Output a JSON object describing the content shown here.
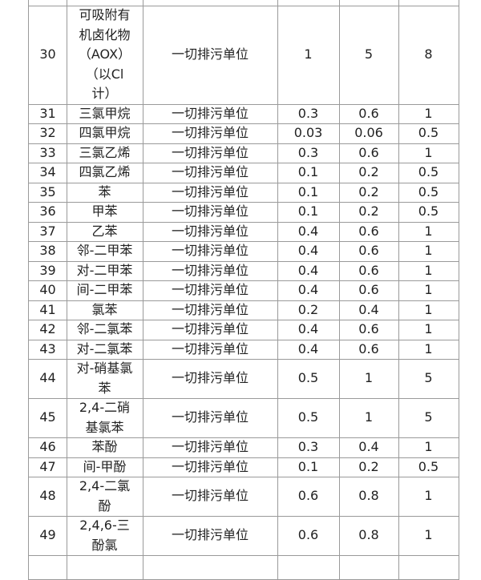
{
  "table": {
    "rows": [
      [
        "30",
        [
          "可吸附有",
          "机卤化物",
          "（AOX）",
          "（以Cl",
          "计）"
        ],
        "一切排污单位",
        "1",
        "5",
        "8"
      ],
      [
        "31",
        [
          "三氯甲烷"
        ],
        "一切排污单位",
        "0.3",
        "0.6",
        "1"
      ],
      [
        "32",
        [
          "四氯甲烷"
        ],
        "一切排污单位",
        "0.03",
        "0.06",
        "0.5"
      ],
      [
        "33",
        [
          "三氯乙烯"
        ],
        "一切排污单位",
        "0.3",
        "0.6",
        "1"
      ],
      [
        "34",
        [
          "四氯乙烯"
        ],
        "一切排污单位",
        "0.1",
        "0.2",
        "0.5"
      ],
      [
        "35",
        [
          "苯"
        ],
        "一切排污单位",
        "0.1",
        "0.2",
        "0.5"
      ],
      [
        "36",
        [
          "甲苯"
        ],
        "一切排污单位",
        "0.1",
        "0.2",
        "0.5"
      ],
      [
        "37",
        [
          "乙苯"
        ],
        "一切排污单位",
        "0.4",
        "0.6",
        "1"
      ],
      [
        "38",
        [
          "邻-二甲苯"
        ],
        "一切排污单位",
        "0.4",
        "0.6",
        "1"
      ],
      [
        "39",
        [
          "对-二甲苯"
        ],
        "一切排污单位",
        "0.4",
        "0.6",
        "1"
      ],
      [
        "40",
        [
          "间-二甲苯"
        ],
        "一切排污单位",
        "0.4",
        "0.6",
        "1"
      ],
      [
        "41",
        [
          "氯苯"
        ],
        "一切排污单位",
        "0.2",
        "0.4",
        "1"
      ],
      [
        "42",
        [
          "邻-二氯苯"
        ],
        "一切排污单位",
        "0.4",
        "0.6",
        "1"
      ],
      [
        "43",
        [
          "对-二氯苯"
        ],
        "一切排污单位",
        "0.4",
        "0.6",
        "1"
      ],
      [
        "44",
        [
          "对-硝基氯",
          "苯"
        ],
        "一切排污单位",
        "0.5",
        "1",
        "5"
      ],
      [
        "45",
        [
          "2,4-二硝",
          "基氯苯"
        ],
        "一切排污单位",
        "0.5",
        "1",
        "5"
      ],
      [
        "46",
        [
          "苯酚"
        ],
        "一切排污单位",
        "0.3",
        "0.4",
        "1"
      ],
      [
        "47",
        [
          "间-甲酚"
        ],
        "一切排污单位",
        "0.1",
        "0.2",
        "0.5"
      ],
      [
        "48",
        [
          "2,4-二氯",
          "酚"
        ],
        "一切排污单位",
        "0.6",
        "0.8",
        "1"
      ],
      [
        "49",
        [
          "2,4,6-三",
          "酚氯"
        ],
        "一切排污单位",
        "0.6",
        "0.8",
        "1"
      ]
    ]
  }
}
